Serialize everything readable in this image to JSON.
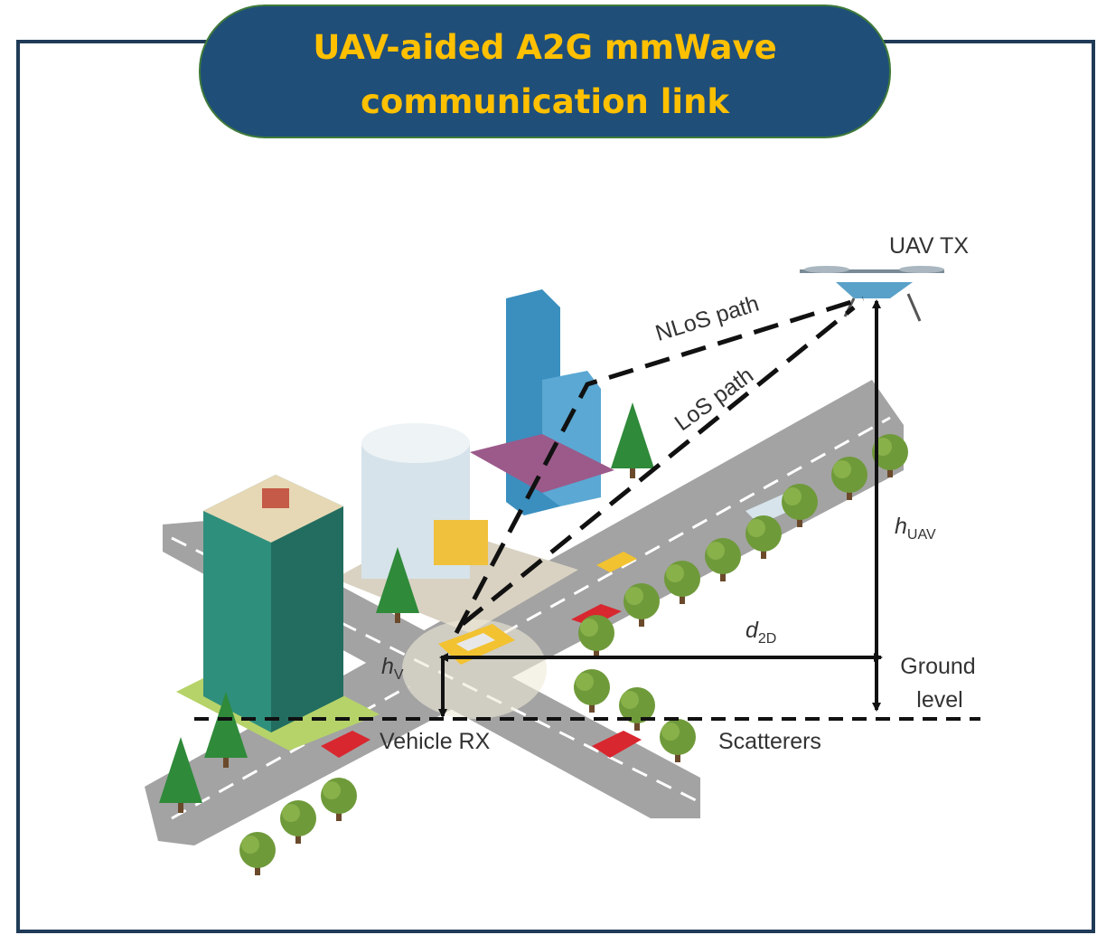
{
  "header": {
    "title_lines": [
      "UAV-aided A2G mmWave",
      "communication link"
    ]
  },
  "labels": {
    "uav": "UAV TX",
    "nlos": "NLoS path",
    "los": "LoS path",
    "h_uav": {
      "symbol": "h",
      "subscript": "UAV"
    },
    "d_2d": {
      "symbol": "d",
      "subscript": "2D"
    },
    "h_v": {
      "symbol": "h",
      "subscript": "V"
    },
    "ground_lines": [
      "Ground",
      "level"
    ],
    "vehicle": "Vehicle RX",
    "scatterers": "Scatterers"
  }
}
